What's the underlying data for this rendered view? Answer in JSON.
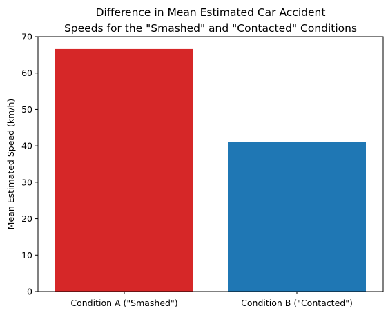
{
  "chart_data": {
    "type": "bar",
    "title_lines": [
      "Difference in Mean Estimated Car Accident",
      "Speeds for the \"Smashed\" and \"Contacted\" Conditions"
    ],
    "xlabel": "",
    "ylabel": "Mean Estimated Speed (km/h)",
    "categories": [
      "Condition A (\"Smashed\")",
      "Condition B (\"Contacted\")"
    ],
    "values": [
      66.6,
      41.1
    ],
    "colors": [
      "#d62728",
      "#1f77b4"
    ],
    "ylim": [
      0,
      70
    ],
    "yticks": [
      0,
      10,
      20,
      30,
      40,
      50,
      60,
      70
    ],
    "grid": false,
    "legend": "none"
  }
}
